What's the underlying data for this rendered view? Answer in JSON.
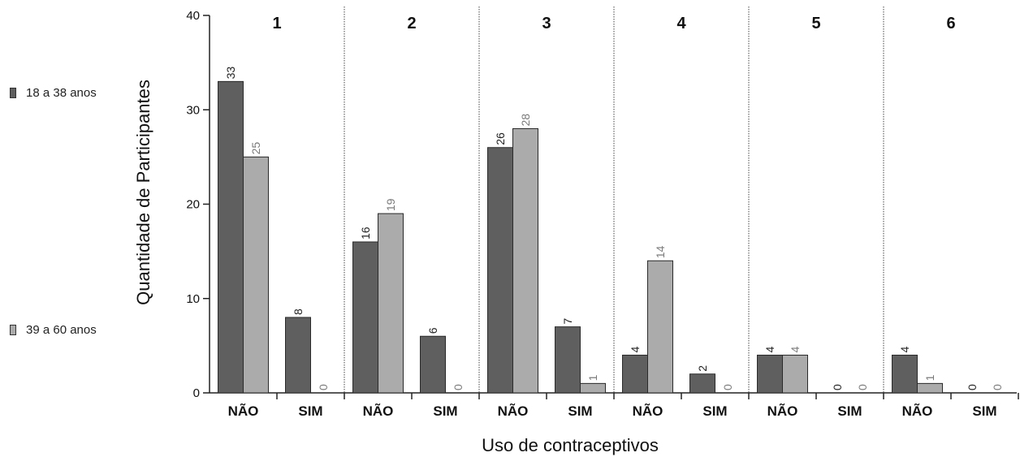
{
  "chart_data": {
    "type": "bar",
    "ylabel": "Quantidade de Participantes",
    "xlabel": "Uso de contraceptivos",
    "ylim": [
      0,
      40
    ],
    "yticks": [
      0,
      10,
      20,
      30,
      40
    ],
    "groups": [
      "1",
      "2",
      "3",
      "4",
      "5",
      "6"
    ],
    "categories": [
      "NÃO",
      "SIM"
    ],
    "legend_position": "left",
    "series": [
      {
        "name": "18 a 38 anos",
        "color": "#5f5f5f",
        "values": [
          [
            33,
            8
          ],
          [
            16,
            6
          ],
          [
            26,
            7
          ],
          [
            4,
            2
          ],
          [
            4,
            0
          ],
          [
            4,
            0
          ]
        ]
      },
      {
        "name": "39 a 60 anos",
        "color": "#ababab",
        "values": [
          [
            25,
            0
          ],
          [
            19,
            0
          ],
          [
            28,
            1
          ],
          [
            14,
            0
          ],
          [
            4,
            0
          ],
          [
            1,
            0
          ]
        ]
      }
    ]
  }
}
